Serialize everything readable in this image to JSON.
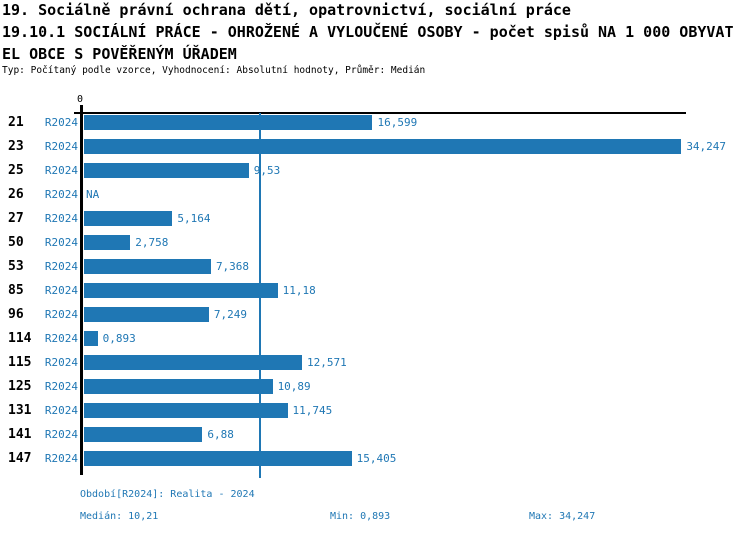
{
  "header": {
    "line1": "19. Sociálně právní ochrana dětí, opatrovnictví, sociální práce",
    "line2": "19.10.1 SOCIÁLNÍ PRÁCE - OHROŽENÉ A VYLOUČENÉ OSOBY - počet spisů NA 1 000 OBYVAT",
    "line3": "EL OBCE S POVĚŘENÝM ÚŘADEM",
    "meta": "Typ: Počítaný podle vzorce, Vyhodnocení: Absolutní hodnoty, Průměr: Medián"
  },
  "chart_data": {
    "type": "bar",
    "orientation": "horizontal",
    "axis_zero_label": "0",
    "series_label": "R2024",
    "na_label": "NA",
    "categories": [
      "21",
      "23",
      "25",
      "26",
      "27",
      "50",
      "53",
      "85",
      "96",
      "114",
      "115",
      "125",
      "131",
      "141",
      "147"
    ],
    "values": [
      16.599,
      34.247,
      9.53,
      null,
      5.164,
      2.758,
      7.368,
      11.18,
      7.249,
      0.893,
      12.571,
      10.89,
      11.745,
      6.88,
      15.405
    ],
    "value_labels": [
      "16,599",
      "34,247",
      "9,53",
      "NA",
      "5,164",
      "2,758",
      "7,368",
      "11,18",
      "7,249",
      "0,893",
      "12,571",
      "10,89",
      "11,745",
      "6,88",
      "15,405"
    ],
    "median_value": 10.21,
    "min_value": 0.893,
    "max_value": 34.247,
    "xlim": [
      0,
      34.5
    ],
    "grid": false,
    "legend_position": "none",
    "bar_color": "#1f77b4",
    "axis_color": "#000000",
    "label_color": "#1f77b4"
  },
  "footer": {
    "period": "Období[R2024]: Realita - 2024",
    "median": "Medián: 10,21",
    "min": "Min: 0,893",
    "max": "Max: 34,247"
  }
}
